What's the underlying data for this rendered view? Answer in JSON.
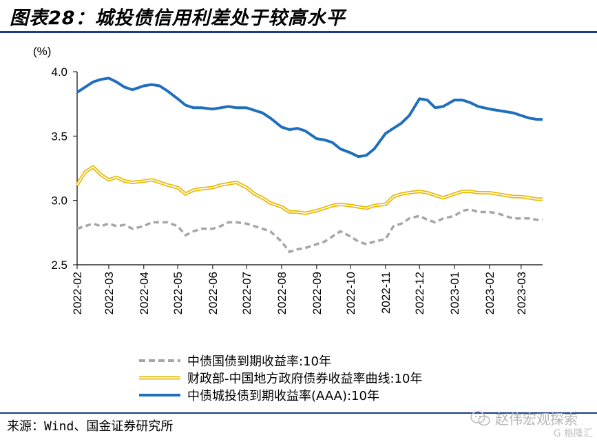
{
  "title": "图表28：城投债信用利差处于较高水平",
  "source": "来源：Wind、国金证券研究所",
  "watermark": {
    "text": "赵伟宏观探索",
    "sub": "G 格隆汇",
    "icon": "wechat-icon"
  },
  "colors": {
    "title_rule": "#1a3c8c",
    "treasury": "#a6a6a6",
    "local_gov": "#e8b900",
    "chengtou": "#1f6fbd"
  },
  "chart_data": {
    "type": "line",
    "title": "",
    "xlabel": "",
    "ylabel": "(%)",
    "ylim": [
      2.5,
      4.0
    ],
    "yticks": [
      "2.5",
      "3.0",
      "3.5",
      "4.0"
    ],
    "x_tick_labels": [
      "2022-02",
      "2022-03",
      "2022-04",
      "2022-05",
      "2022-06",
      "2022-07",
      "2022-08",
      "2022-09",
      "2022-10",
      "2022-11",
      "2022-12",
      "2023-01",
      "2023-02",
      "2023-03"
    ],
    "x_range": [
      "2022-02-01",
      "2023-03-20"
    ],
    "grid": false,
    "legend_position": "bottom",
    "series": [
      {
        "name": "中债国债到期收益率:10年",
        "style": "dashed",
        "color": "#a6a6a6",
        "points": [
          [
            "2022-02-01",
            2.78
          ],
          [
            "2022-02-08",
            2.8
          ],
          [
            "2022-02-15",
            2.82
          ],
          [
            "2022-02-22",
            2.8
          ],
          [
            "2022-03-01",
            2.82
          ],
          [
            "2022-03-08",
            2.8
          ],
          [
            "2022-03-15",
            2.81
          ],
          [
            "2022-03-22",
            2.78
          ],
          [
            "2022-04-01",
            2.8
          ],
          [
            "2022-04-08",
            2.83
          ],
          [
            "2022-04-15",
            2.83
          ],
          [
            "2022-04-22",
            2.83
          ],
          [
            "2022-05-01",
            2.8
          ],
          [
            "2022-05-08",
            2.73
          ],
          [
            "2022-05-15",
            2.76
          ],
          [
            "2022-05-22",
            2.78
          ],
          [
            "2022-06-01",
            2.78
          ],
          [
            "2022-06-08",
            2.8
          ],
          [
            "2022-06-15",
            2.83
          ],
          [
            "2022-06-22",
            2.83
          ],
          [
            "2022-07-01",
            2.82
          ],
          [
            "2022-07-08",
            2.8
          ],
          [
            "2022-07-15",
            2.78
          ],
          [
            "2022-07-22",
            2.76
          ],
          [
            "2022-08-01",
            2.68
          ],
          [
            "2022-08-08",
            2.6
          ],
          [
            "2022-08-15",
            2.62
          ],
          [
            "2022-08-22",
            2.63
          ],
          [
            "2022-09-01",
            2.66
          ],
          [
            "2022-09-08",
            2.68
          ],
          [
            "2022-09-15",
            2.72
          ],
          [
            "2022-09-22",
            2.76
          ],
          [
            "2022-10-01",
            2.72
          ],
          [
            "2022-10-08",
            2.68
          ],
          [
            "2022-10-15",
            2.66
          ],
          [
            "2022-10-22",
            2.68
          ],
          [
            "2022-11-01",
            2.7
          ],
          [
            "2022-11-08",
            2.8
          ],
          [
            "2022-11-15",
            2.82
          ],
          [
            "2022-11-22",
            2.86
          ],
          [
            "2022-12-01",
            2.88
          ],
          [
            "2022-12-08",
            2.85
          ],
          [
            "2022-12-15",
            2.83
          ],
          [
            "2022-12-22",
            2.86
          ],
          [
            "2023-01-01",
            2.88
          ],
          [
            "2023-01-08",
            2.92
          ],
          [
            "2023-01-15",
            2.93
          ],
          [
            "2023-01-22",
            2.91
          ],
          [
            "2023-02-01",
            2.91
          ],
          [
            "2023-02-08",
            2.9
          ],
          [
            "2023-02-15",
            2.88
          ],
          [
            "2023-02-22",
            2.86
          ],
          [
            "2023-03-01",
            2.86
          ],
          [
            "2023-03-08",
            2.86
          ],
          [
            "2023-03-15",
            2.85
          ],
          [
            "2023-03-20",
            2.85
          ]
        ]
      },
      {
        "name": "财政部-中国地方政府债券收益率曲线:10年",
        "style": "double",
        "color": "#e8b900",
        "points": [
          [
            "2022-02-01",
            3.12
          ],
          [
            "2022-02-08",
            3.22
          ],
          [
            "2022-02-15",
            3.26
          ],
          [
            "2022-02-22",
            3.2
          ],
          [
            "2022-03-01",
            3.16
          ],
          [
            "2022-03-08",
            3.18
          ],
          [
            "2022-03-15",
            3.15
          ],
          [
            "2022-03-22",
            3.14
          ],
          [
            "2022-04-01",
            3.15
          ],
          [
            "2022-04-08",
            3.16
          ],
          [
            "2022-04-15",
            3.14
          ],
          [
            "2022-04-22",
            3.12
          ],
          [
            "2022-05-01",
            3.1
          ],
          [
            "2022-05-08",
            3.05
          ],
          [
            "2022-05-15",
            3.08
          ],
          [
            "2022-05-22",
            3.09
          ],
          [
            "2022-06-01",
            3.1
          ],
          [
            "2022-06-08",
            3.12
          ],
          [
            "2022-06-15",
            3.13
          ],
          [
            "2022-06-22",
            3.14
          ],
          [
            "2022-07-01",
            3.1
          ],
          [
            "2022-07-08",
            3.05
          ],
          [
            "2022-07-15",
            3.02
          ],
          [
            "2022-07-22",
            2.98
          ],
          [
            "2022-08-01",
            2.95
          ],
          [
            "2022-08-08",
            2.91
          ],
          [
            "2022-08-15",
            2.91
          ],
          [
            "2022-08-22",
            2.9
          ],
          [
            "2022-09-01",
            2.92
          ],
          [
            "2022-09-08",
            2.94
          ],
          [
            "2022-09-15",
            2.96
          ],
          [
            "2022-09-22",
            2.97
          ],
          [
            "2022-10-01",
            2.96
          ],
          [
            "2022-10-08",
            2.95
          ],
          [
            "2022-10-15",
            2.94
          ],
          [
            "2022-10-22",
            2.96
          ],
          [
            "2022-11-01",
            2.97
          ],
          [
            "2022-11-08",
            3.03
          ],
          [
            "2022-11-15",
            3.05
          ],
          [
            "2022-11-22",
            3.06
          ],
          [
            "2022-12-01",
            3.07
          ],
          [
            "2022-12-08",
            3.06
          ],
          [
            "2022-12-15",
            3.04
          ],
          [
            "2022-12-22",
            3.02
          ],
          [
            "2023-01-01",
            3.05
          ],
          [
            "2023-01-08",
            3.07
          ],
          [
            "2023-01-15",
            3.07
          ],
          [
            "2023-01-22",
            3.06
          ],
          [
            "2023-02-01",
            3.06
          ],
          [
            "2023-02-08",
            3.05
          ],
          [
            "2023-02-15",
            3.04
          ],
          [
            "2023-02-22",
            3.03
          ],
          [
            "2023-03-01",
            3.03
          ],
          [
            "2023-03-08",
            3.02
          ],
          [
            "2023-03-15",
            3.01
          ],
          [
            "2023-03-20",
            3.01
          ]
        ]
      },
      {
        "name": "中债城投债到期收益率(AAA):10年",
        "style": "solid",
        "color": "#1f6fbd",
        "points": [
          [
            "2022-02-01",
            3.84
          ],
          [
            "2022-02-08",
            3.88
          ],
          [
            "2022-02-15",
            3.92
          ],
          [
            "2022-02-22",
            3.94
          ],
          [
            "2022-03-01",
            3.95
          ],
          [
            "2022-03-08",
            3.92
          ],
          [
            "2022-03-15",
            3.88
          ],
          [
            "2022-03-22",
            3.86
          ],
          [
            "2022-04-01",
            3.89
          ],
          [
            "2022-04-08",
            3.9
          ],
          [
            "2022-04-15",
            3.89
          ],
          [
            "2022-04-22",
            3.85
          ],
          [
            "2022-05-01",
            3.79
          ],
          [
            "2022-05-08",
            3.74
          ],
          [
            "2022-05-15",
            3.72
          ],
          [
            "2022-05-22",
            3.72
          ],
          [
            "2022-06-01",
            3.71
          ],
          [
            "2022-06-08",
            3.72
          ],
          [
            "2022-06-15",
            3.73
          ],
          [
            "2022-06-22",
            3.72
          ],
          [
            "2022-07-01",
            3.72
          ],
          [
            "2022-07-08",
            3.7
          ],
          [
            "2022-07-15",
            3.68
          ],
          [
            "2022-07-22",
            3.64
          ],
          [
            "2022-08-01",
            3.57
          ],
          [
            "2022-08-08",
            3.55
          ],
          [
            "2022-08-15",
            3.56
          ],
          [
            "2022-08-22",
            3.54
          ],
          [
            "2022-09-01",
            3.48
          ],
          [
            "2022-09-08",
            3.47
          ],
          [
            "2022-09-15",
            3.45
          ],
          [
            "2022-09-22",
            3.4
          ],
          [
            "2022-10-01",
            3.37
          ],
          [
            "2022-10-08",
            3.34
          ],
          [
            "2022-10-15",
            3.35
          ],
          [
            "2022-10-22",
            3.4
          ],
          [
            "2022-11-01",
            3.52
          ],
          [
            "2022-11-08",
            3.56
          ],
          [
            "2022-11-15",
            3.6
          ],
          [
            "2022-11-22",
            3.66
          ],
          [
            "2022-12-01",
            3.79
          ],
          [
            "2022-12-08",
            3.78
          ],
          [
            "2022-12-15",
            3.72
          ],
          [
            "2022-12-22",
            3.73
          ],
          [
            "2023-01-01",
            3.78
          ],
          [
            "2023-01-08",
            3.78
          ],
          [
            "2023-01-15",
            3.76
          ],
          [
            "2023-01-22",
            3.73
          ],
          [
            "2023-02-01",
            3.71
          ],
          [
            "2023-02-08",
            3.7
          ],
          [
            "2023-02-15",
            3.69
          ],
          [
            "2023-02-22",
            3.68
          ],
          [
            "2023-03-01",
            3.66
          ],
          [
            "2023-03-08",
            3.64
          ],
          [
            "2023-03-15",
            3.63
          ],
          [
            "2023-03-20",
            3.63
          ]
        ]
      }
    ]
  }
}
